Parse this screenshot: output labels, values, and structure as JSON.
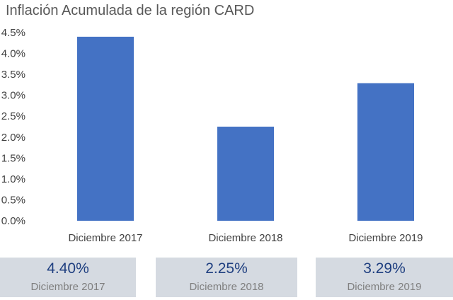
{
  "chart_data": {
    "type": "bar",
    "title": "Inflación Acumulada de la región CARD",
    "categories": [
      "Diciembre 2017",
      "Diciembre 2018",
      "Diciembre 2019"
    ],
    "values": [
      4.4,
      2.25,
      3.29
    ],
    "ylim": [
      0,
      4.5
    ],
    "yticks": [
      "0.0%",
      "0.5%",
      "1.0%",
      "1.5%",
      "2.0%",
      "2.5%",
      "3.0%",
      "3.5%",
      "4.0%",
      "4.5%"
    ],
    "xlabel": "",
    "ylabel": "",
    "grid": false,
    "bar_color": "#4472c4"
  },
  "summary_cards": [
    {
      "value": "4.40%",
      "label": "Diciembre 2017"
    },
    {
      "value": "2.25%",
      "label": "Diciembre 2018"
    },
    {
      "value": "3.29%",
      "label": "Diciembre 2019"
    }
  ],
  "colors": {
    "card_bg": "#d5dae1",
    "card_value": "#1f3f80",
    "axis_text": "#404040"
  }
}
